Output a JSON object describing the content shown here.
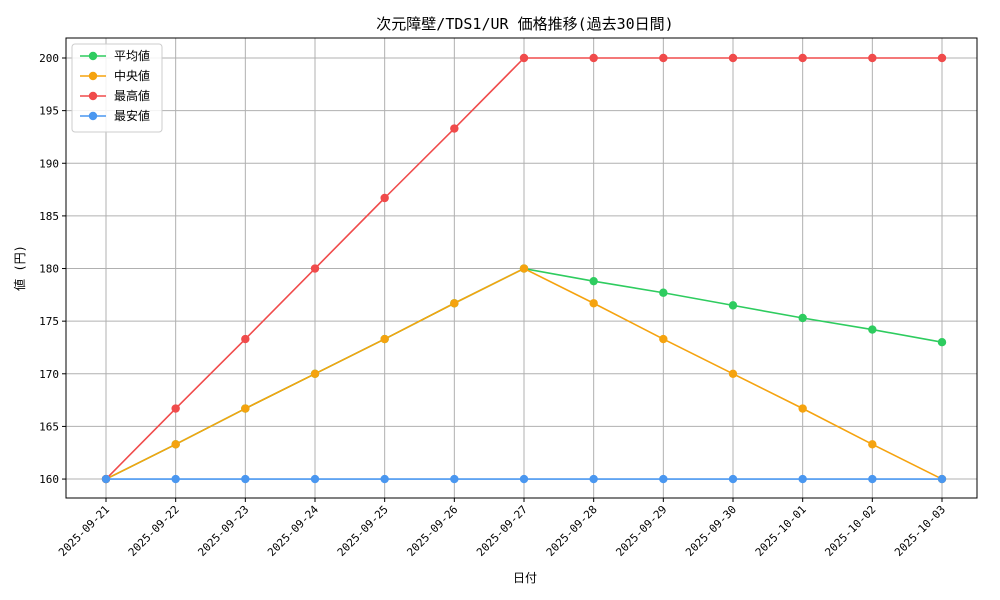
{
  "chart_data": {
    "type": "line",
    "title": "次元障壁/TDS1/UR 価格推移(過去30日間)",
    "xlabel": "日付",
    "ylabel": "値 (円)",
    "categories": [
      "2025-09-21",
      "2025-09-22",
      "2025-09-23",
      "2025-09-24",
      "2025-09-25",
      "2025-09-26",
      "2025-09-27",
      "2025-09-28",
      "2025-09-29",
      "2025-09-30",
      "2025-10-01",
      "2025-10-02",
      "2025-10-03"
    ],
    "ylim": [
      158.2,
      201.9
    ],
    "yticks": [
      160,
      165,
      170,
      175,
      180,
      185,
      190,
      195,
      200
    ],
    "grid": true,
    "legend_position": "top-left",
    "series": [
      {
        "name": "平均値",
        "color": "#2ecc5f",
        "values": [
          160.0,
          163.3,
          166.7,
          170.0,
          173.3,
          176.7,
          180.0,
          178.8,
          177.7,
          176.5,
          175.3,
          174.2,
          173.0
        ]
      },
      {
        "name": "中央値",
        "color": "#f5a30f",
        "values": [
          160.0,
          163.3,
          166.7,
          170.0,
          173.3,
          176.7,
          180.0,
          176.7,
          173.3,
          170.0,
          166.7,
          163.3,
          160.0
        ]
      },
      {
        "name": "最高値",
        "color": "#f04b4b",
        "values": [
          160.0,
          166.7,
          173.3,
          180.0,
          186.7,
          193.3,
          200.0,
          200.0,
          200.0,
          200.0,
          200.0,
          200.0,
          200.0
        ]
      },
      {
        "name": "最安値",
        "color": "#4a97f0",
        "values": [
          160.0,
          160.0,
          160.0,
          160.0,
          160.0,
          160.0,
          160.0,
          160.0,
          160.0,
          160.0,
          160.0,
          160.0,
          160.0
        ]
      }
    ]
  }
}
